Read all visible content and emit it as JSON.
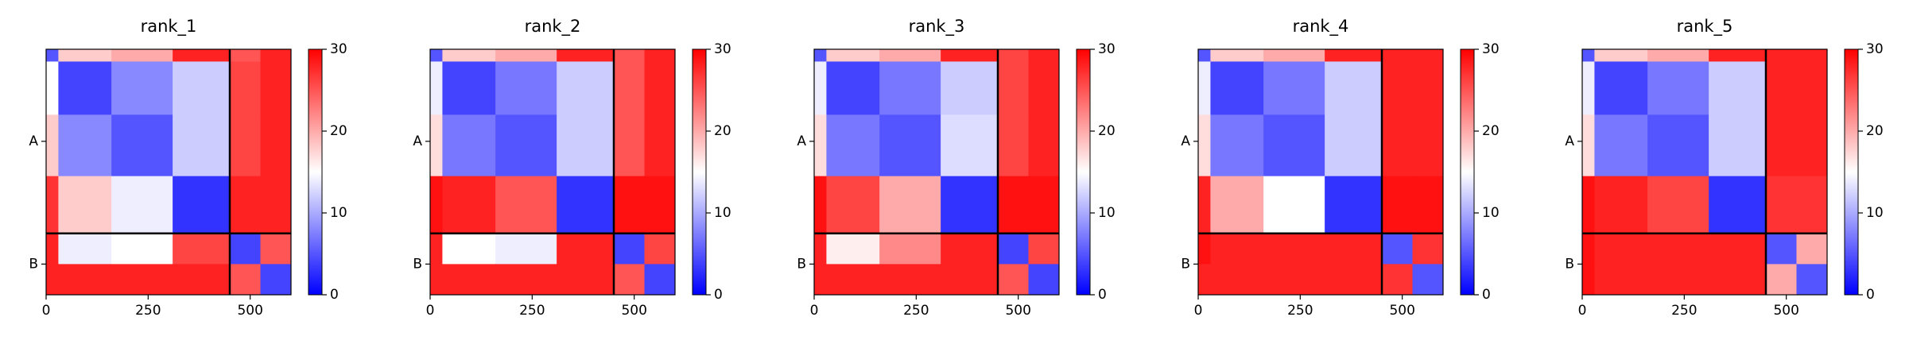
{
  "chart_data": [
    {
      "type": "heatmap",
      "title": "rank_1",
      "bins": [
        0,
        30,
        160,
        310,
        450,
        525,
        600
      ],
      "values": [
        [
          5,
          18,
          20,
          28,
          25,
          28
        ],
        [
          15,
          4,
          8,
          12,
          26,
          28
        ],
        [
          18,
          8,
          5,
          12,
          26,
          28
        ],
        [
          27,
          18,
          14,
          3,
          28,
          28
        ],
        [
          28,
          14,
          15,
          26,
          4,
          25
        ],
        [
          28,
          28,
          28,
          28,
          25,
          4
        ]
      ],
      "xlim": [
        0,
        600
      ],
      "xticks": [
        0,
        250,
        500
      ],
      "ylim": [
        600,
        0
      ],
      "yticks": [
        {
          "value": 225,
          "label": "A"
        },
        {
          "value": 525,
          "label": "B"
        }
      ],
      "chain_breaks": [
        450
      ],
      "clim": [
        0,
        30
      ],
      "cticks": [
        0,
        10,
        20,
        30
      ]
    },
    {
      "type": "heatmap",
      "title": "rank_2",
      "bins": [
        0,
        30,
        160,
        310,
        450,
        525,
        600
      ],
      "values": [
        [
          5,
          18,
          20,
          28,
          25,
          28
        ],
        [
          14,
          4,
          7,
          12,
          25,
          28
        ],
        [
          17,
          7,
          5,
          12,
          25,
          28
        ],
        [
          29,
          28,
          25,
          3,
          29,
          29
        ],
        [
          28,
          15,
          14,
          28,
          4,
          26
        ],
        [
          28,
          28,
          28,
          28,
          25,
          4
        ]
      ],
      "xlim": [
        0,
        600
      ],
      "xticks": [
        0,
        250,
        500
      ],
      "ylim": [
        600,
        0
      ],
      "yticks": [
        {
          "value": 225,
          "label": "A"
        },
        {
          "value": 525,
          "label": "B"
        }
      ],
      "chain_breaks": [
        450
      ],
      "clim": [
        0,
        30
      ],
      "cticks": [
        0,
        10,
        20,
        30
      ]
    },
    {
      "type": "heatmap",
      "title": "rank_3",
      "bins": [
        0,
        30,
        160,
        310,
        450,
        525,
        600
      ],
      "values": [
        [
          5,
          18,
          20,
          28,
          26,
          28
        ],
        [
          14,
          4,
          7,
          12,
          26,
          28
        ],
        [
          17,
          7,
          5,
          13,
          26,
          28
        ],
        [
          29,
          26,
          20,
          3,
          29,
          29
        ],
        [
          28,
          16,
          22,
          28,
          4,
          26
        ],
        [
          28,
          28,
          28,
          28,
          25,
          4
        ]
      ],
      "xlim": [
        0,
        600
      ],
      "xticks": [
        0,
        250,
        500
      ],
      "ylim": [
        600,
        0
      ],
      "yticks": [
        {
          "value": 225,
          "label": "A"
        },
        {
          "value": 525,
          "label": "B"
        }
      ],
      "chain_breaks": [
        450
      ],
      "clim": [
        0,
        30
      ],
      "cticks": [
        0,
        10,
        20,
        30
      ]
    },
    {
      "type": "heatmap",
      "title": "rank_4",
      "bins": [
        0,
        30,
        160,
        310,
        450,
        525,
        600
      ],
      "values": [
        [
          5,
          18,
          20,
          28,
          28,
          28
        ],
        [
          14,
          4,
          7,
          12,
          28,
          28
        ],
        [
          17,
          7,
          5,
          12,
          28,
          28
        ],
        [
          28,
          20,
          15,
          3,
          29,
          29
        ],
        [
          29,
          28,
          28,
          28,
          5,
          27
        ],
        [
          28,
          28,
          28,
          28,
          27,
          5
        ]
      ],
      "xlim": [
        0,
        600
      ],
      "xticks": [
        0,
        250,
        500
      ],
      "ylim": [
        600,
        0
      ],
      "yticks": [
        {
          "value": 225,
          "label": "A"
        },
        {
          "value": 525,
          "label": "B"
        }
      ],
      "chain_breaks": [
        450
      ],
      "clim": [
        0,
        30
      ],
      "cticks": [
        0,
        10,
        20,
        30
      ]
    },
    {
      "type": "heatmap",
      "title": "rank_5",
      "bins": [
        0,
        30,
        160,
        310,
        450,
        525,
        600
      ],
      "values": [
        [
          5,
          18,
          20,
          28,
          28,
          28
        ],
        [
          14,
          4,
          7,
          12,
          28,
          28
        ],
        [
          17,
          7,
          5,
          12,
          28,
          28
        ],
        [
          29,
          28,
          26,
          3,
          27,
          27
        ],
        [
          29,
          28,
          28,
          28,
          5,
          20
        ],
        [
          29,
          28,
          28,
          28,
          20,
          5
        ]
      ],
      "xlim": [
        0,
        600
      ],
      "xticks": [
        0,
        250,
        500
      ],
      "ylim": [
        600,
        0
      ],
      "yticks": [
        {
          "value": 225,
          "label": "A"
        },
        {
          "value": 525,
          "label": "B"
        }
      ],
      "chain_breaks": [
        450
      ],
      "clim": [
        0,
        30
      ],
      "cticks": [
        0,
        10,
        20,
        30
      ]
    }
  ]
}
